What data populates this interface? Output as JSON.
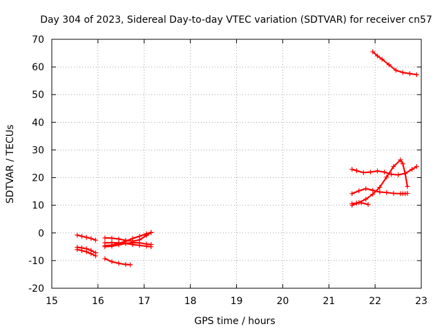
{
  "chart_data": {
    "type": "scatter",
    "title": "Day 304 of 2023, Sidereal Day-to-day VTEC variation (SDTVAR) for receiver cn57",
    "xlabel": "GPS time / hours",
    "ylabel": "SDTVAR / TECUs",
    "xlim": [
      15,
      23
    ],
    "ylim": [
      -20,
      70
    ],
    "xticks": [
      15,
      16,
      17,
      18,
      19,
      20,
      21,
      22,
      23
    ],
    "yticks": [
      -20,
      -10,
      0,
      10,
      20,
      30,
      40,
      50,
      60,
      70
    ],
    "grid": true,
    "marker": "+",
    "color": "#ff0000",
    "series": [
      {
        "x": [
          15.55,
          15.65,
          15.75,
          15.85,
          15.95
        ],
        "y": [
          -0.8,
          -1.2,
          -1.6,
          -2.0,
          -2.6
        ]
      },
      {
        "x": [
          15.55,
          15.65,
          15.75,
          15.85,
          15.95
        ],
        "y": [
          -5.2,
          -5.4,
          -5.7,
          -6.3,
          -7.2
        ]
      },
      {
        "x": [
          15.55,
          15.65,
          15.75,
          15.85,
          15.95
        ],
        "y": [
          -6.0,
          -6.4,
          -6.8,
          -7.5,
          -8.3
        ]
      },
      {
        "x": [
          16.15,
          16.3,
          16.45,
          16.6,
          16.75,
          16.9,
          17.05,
          17.15
        ],
        "y": [
          -1.8,
          -1.9,
          -2.2,
          -2.7,
          -3.0,
          -2.5,
          -0.9,
          0.2
        ]
      },
      {
        "x": [
          16.15,
          16.3,
          16.45,
          16.6,
          16.75,
          16.9,
          17.05,
          17.15
        ],
        "y": [
          -4.6,
          -4.4,
          -3.8,
          -3.0,
          -2.0,
          -1.2,
          -0.3,
          0.1
        ]
      },
      {
        "x": [
          16.15,
          16.3,
          16.45,
          16.6,
          16.75,
          16.9,
          17.05,
          17.15
        ],
        "y": [
          -5.0,
          -4.8,
          -4.3,
          -3.8,
          -3.5,
          -3.6,
          -4.0,
          -4.2
        ]
      },
      {
        "x": [
          16.15,
          16.3,
          16.45,
          16.6,
          16.75,
          16.9,
          17.05,
          17.15
        ],
        "y": [
          -3.6,
          -3.5,
          -3.6,
          -3.8,
          -4.2,
          -4.5,
          -4.8,
          -5.0
        ]
      },
      {
        "x": [
          16.15,
          16.3,
          16.45,
          16.6,
          16.7
        ],
        "y": [
          -9.3,
          -10.4,
          -11.0,
          -11.4,
          -11.5
        ]
      },
      {
        "x": [
          21.5,
          21.6,
          21.75,
          21.9,
          22.05,
          22.2,
          22.35,
          22.5,
          22.65,
          22.8,
          22.9
        ],
        "y": [
          23.0,
          22.5,
          21.8,
          22.0,
          22.4,
          22.0,
          21.2,
          21.0,
          21.5,
          23.0,
          24.0
        ]
      },
      {
        "x": [
          21.5,
          21.65,
          21.8,
          21.95,
          22.1,
          22.25,
          22.4,
          22.55,
          22.6,
          22.65,
          22.7
        ],
        "y": [
          14.2,
          15.2,
          16.0,
          15.4,
          14.8,
          14.6,
          14.3,
          14.2,
          14.2,
          14.2,
          14.3
        ]
      },
      {
        "x": [
          21.5,
          21.65,
          21.8,
          21.95,
          22.1,
          22.25,
          22.4,
          22.55,
          22.6,
          22.65,
          22.7
        ],
        "y": [
          10.0,
          11.0,
          12.2,
          14.0,
          16.5,
          20.2,
          24.0,
          26.4,
          25.0,
          21.5,
          16.8
        ]
      },
      {
        "x": [
          21.5,
          21.6,
          21.7,
          21.85
        ],
        "y": [
          10.6,
          10.8,
          10.9,
          10.3
        ]
      },
      {
        "x": [
          21.95,
          22.05,
          22.15,
          22.3,
          22.45,
          22.6,
          22.75,
          22.9
        ],
        "y": [
          65.5,
          64.0,
          62.8,
          60.8,
          58.8,
          58.0,
          57.6,
          57.2
        ]
      }
    ]
  }
}
